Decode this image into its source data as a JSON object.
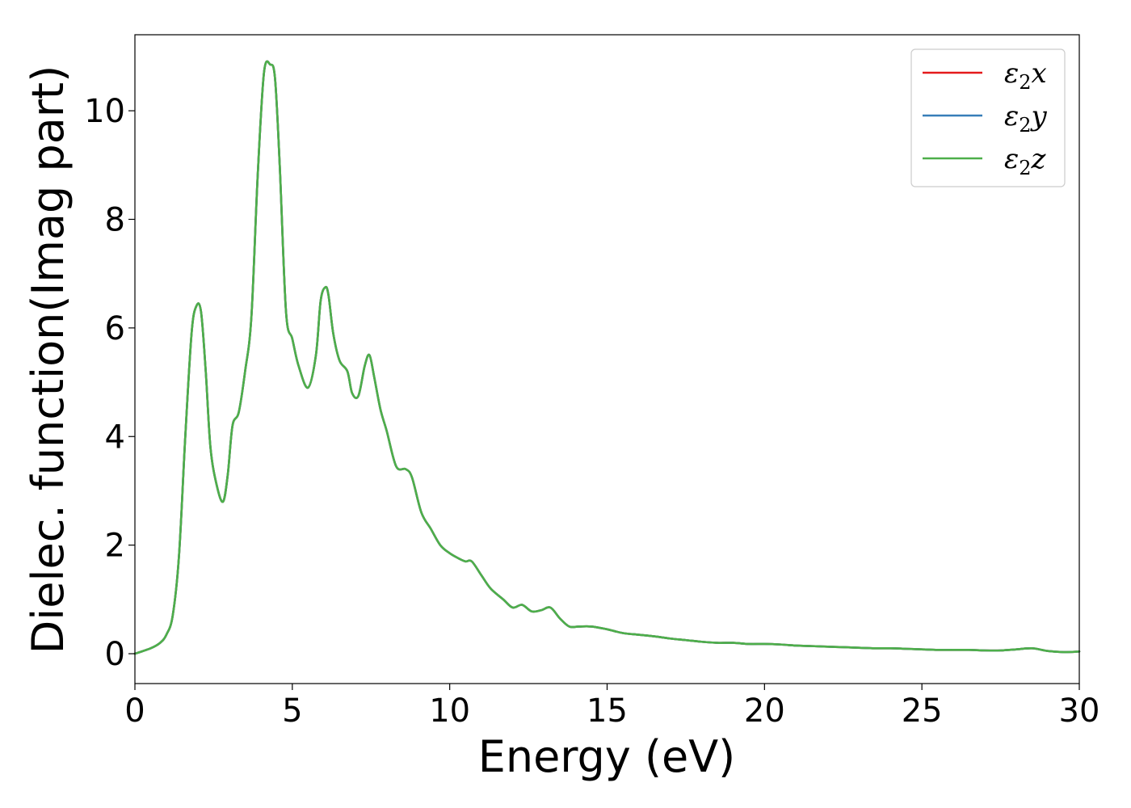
{
  "chart_data": {
    "type": "line",
    "title": "",
    "xlabel": "Energy (eV)",
    "ylabel": "Dielec. function(Imag part)",
    "xlim": [
      0,
      30
    ],
    "ylim": [
      -0.55,
      11.4
    ],
    "xticks": [
      0,
      5,
      10,
      15,
      20,
      25,
      30
    ],
    "yticks": [
      0,
      2,
      4,
      6,
      8,
      10
    ],
    "grid": false,
    "legend_position": "top-right",
    "series": [
      {
        "name": "ε₂x",
        "legend_base": "ε",
        "legend_sub": "2",
        "legend_var": "x",
        "color": "#e41a1c",
        "x": [
          0,
          0.5,
          0.8,
          1.0,
          1.2,
          1.4,
          1.6,
          1.8,
          1.95,
          2.1,
          2.25,
          2.4,
          2.6,
          2.8,
          2.95,
          3.1,
          3.3,
          3.5,
          3.7,
          3.9,
          4.1,
          4.3,
          4.45,
          4.6,
          4.8,
          5.0,
          5.2,
          5.5,
          5.75,
          5.9,
          6.05,
          6.15,
          6.3,
          6.5,
          6.75,
          6.9,
          7.1,
          7.3,
          7.45,
          7.6,
          7.8,
          8.0,
          8.3,
          8.6,
          8.8,
          9.1,
          9.4,
          9.7,
          10.0,
          10.3,
          10.5,
          10.7,
          11.0,
          11.3,
          11.7,
          12.0,
          12.3,
          12.6,
          12.9,
          13.2,
          13.5,
          13.8,
          14.1,
          14.5,
          15.0,
          15.5,
          16.0,
          16.5,
          17.0,
          17.5,
          18.0,
          18.5,
          19.0,
          19.5,
          20.0,
          20.5,
          21.0,
          21.5,
          22.0,
          22.5,
          23.0,
          23.5,
          24.0,
          24.5,
          25.0,
          25.5,
          26.0,
          26.5,
          27.0,
          27.5,
          28.0,
          28.5,
          29.0,
          29.5,
          30.0
        ],
        "values": [
          0,
          0.1,
          0.2,
          0.35,
          0.7,
          1.8,
          4.0,
          5.9,
          6.4,
          6.3,
          5.2,
          3.8,
          3.1,
          2.8,
          3.3,
          4.2,
          4.45,
          5.2,
          6.2,
          8.8,
          10.7,
          10.85,
          10.6,
          9.0,
          6.3,
          5.8,
          5.3,
          4.9,
          5.5,
          6.5,
          6.75,
          6.6,
          5.9,
          5.4,
          5.2,
          4.8,
          4.75,
          5.3,
          5.5,
          5.1,
          4.5,
          4.1,
          3.45,
          3.4,
          3.25,
          2.6,
          2.3,
          2.0,
          1.85,
          1.75,
          1.7,
          1.7,
          1.45,
          1.2,
          1.0,
          0.85,
          0.9,
          0.78,
          0.8,
          0.85,
          0.65,
          0.5,
          0.5,
          0.5,
          0.45,
          0.38,
          0.35,
          0.32,
          0.28,
          0.25,
          0.22,
          0.2,
          0.2,
          0.18,
          0.18,
          0.17,
          0.15,
          0.14,
          0.13,
          0.12,
          0.11,
          0.1,
          0.1,
          0.09,
          0.08,
          0.07,
          0.07,
          0.07,
          0.06,
          0.06,
          0.08,
          0.1,
          0.05,
          0.03,
          0.04
        ]
      },
      {
        "name": "ε₂y",
        "legend_base": "ε",
        "legend_sub": "2",
        "legend_var": "y",
        "color": "#377eb8",
        "x": [
          0,
          0.5,
          0.8,
          1.0,
          1.2,
          1.4,
          1.6,
          1.8,
          1.95,
          2.1,
          2.25,
          2.4,
          2.6,
          2.8,
          2.95,
          3.1,
          3.3,
          3.5,
          3.7,
          3.9,
          4.1,
          4.3,
          4.45,
          4.6,
          4.8,
          5.0,
          5.2,
          5.5,
          5.75,
          5.9,
          6.05,
          6.15,
          6.3,
          6.5,
          6.75,
          6.9,
          7.1,
          7.3,
          7.45,
          7.6,
          7.8,
          8.0,
          8.3,
          8.6,
          8.8,
          9.1,
          9.4,
          9.7,
          10.0,
          10.3,
          10.5,
          10.7,
          11.0,
          11.3,
          11.7,
          12.0,
          12.3,
          12.6,
          12.9,
          13.2,
          13.5,
          13.8,
          14.1,
          14.5,
          15.0,
          15.5,
          16.0,
          16.5,
          17.0,
          17.5,
          18.0,
          18.5,
          19.0,
          19.5,
          20.0,
          20.5,
          21.0,
          21.5,
          22.0,
          22.5,
          23.0,
          23.5,
          24.0,
          24.5,
          25.0,
          25.5,
          26.0,
          26.5,
          27.0,
          27.5,
          28.0,
          28.5,
          29.0,
          29.5,
          30.0
        ],
        "values": [
          0,
          0.1,
          0.2,
          0.35,
          0.7,
          1.8,
          4.0,
          5.9,
          6.4,
          6.3,
          5.2,
          3.8,
          3.1,
          2.8,
          3.3,
          4.2,
          4.45,
          5.2,
          6.2,
          8.8,
          10.7,
          10.85,
          10.6,
          9.0,
          6.3,
          5.8,
          5.3,
          4.9,
          5.5,
          6.5,
          6.75,
          6.6,
          5.9,
          5.4,
          5.2,
          4.8,
          4.75,
          5.3,
          5.5,
          5.1,
          4.5,
          4.1,
          3.45,
          3.4,
          3.25,
          2.6,
          2.3,
          2.0,
          1.85,
          1.75,
          1.7,
          1.7,
          1.45,
          1.2,
          1.0,
          0.85,
          0.9,
          0.78,
          0.8,
          0.85,
          0.65,
          0.5,
          0.5,
          0.5,
          0.45,
          0.38,
          0.35,
          0.32,
          0.28,
          0.25,
          0.22,
          0.2,
          0.2,
          0.18,
          0.18,
          0.17,
          0.15,
          0.14,
          0.13,
          0.12,
          0.11,
          0.1,
          0.1,
          0.09,
          0.08,
          0.07,
          0.07,
          0.07,
          0.06,
          0.06,
          0.08,
          0.1,
          0.05,
          0.03,
          0.04
        ]
      },
      {
        "name": "ε₂z",
        "legend_base": "ε",
        "legend_sub": "2",
        "legend_var": "z",
        "color": "#4daf4a",
        "x": [
          0,
          0.5,
          0.8,
          1.0,
          1.2,
          1.4,
          1.6,
          1.8,
          1.95,
          2.1,
          2.25,
          2.4,
          2.6,
          2.8,
          2.95,
          3.1,
          3.3,
          3.5,
          3.7,
          3.9,
          4.1,
          4.3,
          4.45,
          4.6,
          4.8,
          5.0,
          5.2,
          5.5,
          5.75,
          5.9,
          6.05,
          6.15,
          6.3,
          6.5,
          6.75,
          6.9,
          7.1,
          7.3,
          7.45,
          7.6,
          7.8,
          8.0,
          8.3,
          8.6,
          8.8,
          9.1,
          9.4,
          9.7,
          10.0,
          10.3,
          10.5,
          10.7,
          11.0,
          11.3,
          11.7,
          12.0,
          12.3,
          12.6,
          12.9,
          13.2,
          13.5,
          13.8,
          14.1,
          14.5,
          15.0,
          15.5,
          16.0,
          16.5,
          17.0,
          17.5,
          18.0,
          18.5,
          19.0,
          19.5,
          20.0,
          20.5,
          21.0,
          21.5,
          22.0,
          22.5,
          23.0,
          23.5,
          24.0,
          24.5,
          25.0,
          25.5,
          26.0,
          26.5,
          27.0,
          27.5,
          28.0,
          28.5,
          29.0,
          29.5,
          30.0
        ],
        "values": [
          0,
          0.1,
          0.2,
          0.35,
          0.7,
          1.8,
          4.0,
          5.9,
          6.4,
          6.3,
          5.2,
          3.8,
          3.1,
          2.8,
          3.3,
          4.2,
          4.45,
          5.2,
          6.2,
          8.8,
          10.7,
          10.85,
          10.6,
          9.0,
          6.3,
          5.8,
          5.3,
          4.9,
          5.5,
          6.5,
          6.75,
          6.6,
          5.9,
          5.4,
          5.2,
          4.8,
          4.75,
          5.3,
          5.5,
          5.1,
          4.5,
          4.1,
          3.45,
          3.4,
          3.25,
          2.6,
          2.3,
          2.0,
          1.85,
          1.75,
          1.7,
          1.7,
          1.45,
          1.2,
          1.0,
          0.85,
          0.9,
          0.78,
          0.8,
          0.85,
          0.65,
          0.5,
          0.5,
          0.5,
          0.45,
          0.38,
          0.35,
          0.32,
          0.28,
          0.25,
          0.22,
          0.2,
          0.2,
          0.18,
          0.18,
          0.17,
          0.15,
          0.14,
          0.13,
          0.12,
          0.11,
          0.1,
          0.1,
          0.09,
          0.08,
          0.07,
          0.07,
          0.07,
          0.06,
          0.06,
          0.08,
          0.1,
          0.05,
          0.03,
          0.04
        ]
      }
    ]
  }
}
